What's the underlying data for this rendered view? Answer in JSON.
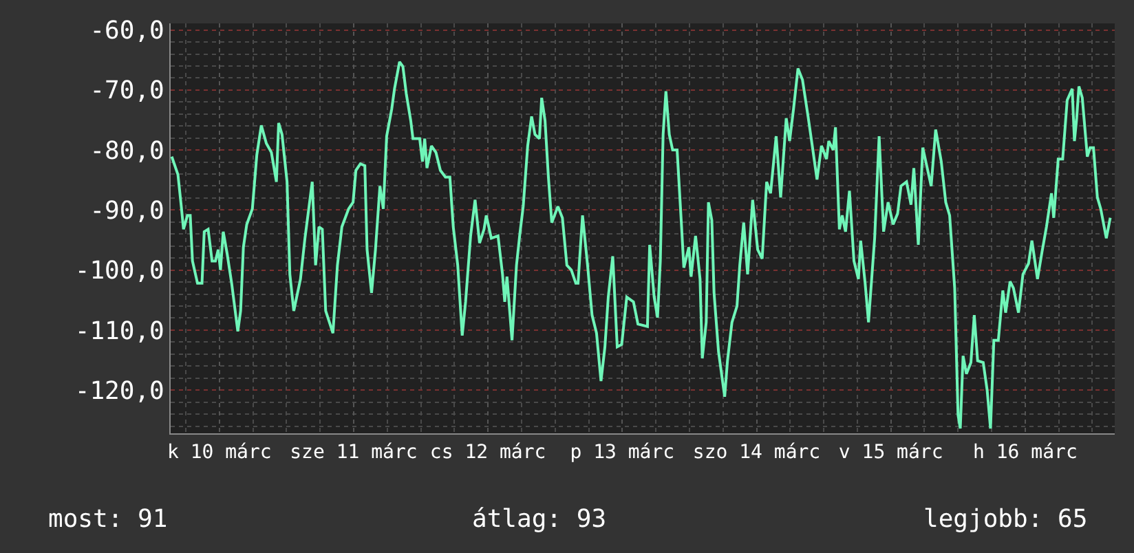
{
  "chart_data": {
    "type": "line",
    "x": [
      "--03-10T03:30",
      "--03-10T04:36",
      "--03-10T05:12",
      "--03-10T05:36",
      "--03-10T06:18",
      "--03-10T06:48",
      "--03-10T07:12",
      "--03-10T08:06",
      "--03-10T08:54",
      "--03-10T09:18",
      "--03-10T10:00",
      "--03-10T10:42",
      "--03-10T11:18",
      "--03-10T11:48",
      "--03-10T12:12",
      "--03-10T12:42",
      "--03-10T13:24",
      "--03-10T14:12",
      "--03-10T15:18",
      "--03-10T15:48",
      "--03-10T16:18",
      "--03-10T16:54",
      "--03-10T17:54",
      "--03-10T18:42",
      "--03-10T19:30",
      "--03-10T20:24",
      "--03-10T21:18",
      "--03-10T22:12",
      "--03-10T22:36",
      "--03-10T23:12",
      "--03-11T00:06",
      "--03-11T00:36",
      "--03-11T01:18",
      "--03-11T02:30",
      "--03-11T03:18",
      "--03-11T04:36",
      "--03-11T05:12",
      "--03-11T05:48",
      "--03-11T06:24",
      "--03-11T07:00",
      "--03-11T08:18",
      "--03-11T09:06",
      "--03-11T09:54",
      "--03-11T11:06",
      "--03-11T11:54",
      "--03-11T12:24",
      "--03-11T13:12",
      "--03-11T14:00",
      "--03-11T14:24",
      "--03-11T15:12",
      "--03-11T15:54",
      "--03-11T16:42",
      "--03-11T17:18",
      "--03-11T17:54",
      "--03-11T18:48",
      "--03-11T19:18",
      "--03-11T20:12",
      "--03-11T20:48",
      "--03-11T21:24",
      "--03-11T22:12",
      "--03-11T22:36",
      "--03-11T23:48",
      "--03-12T00:18",
      "--03-12T00:42",
      "--03-12T01:06",
      "--03-12T01:54",
      "--03-12T02:42",
      "--03-12T03:30",
      "--03-12T04:24",
      "--03-12T05:12",
      "--03-12T05:48",
      "--03-12T06:36",
      "--03-12T07:24",
      "--03-12T08:00",
      "--03-12T08:54",
      "--03-12T09:42",
      "--03-12T10:30",
      "--03-12T11:18",
      "--03-12T11:42",
      "--03-12T12:36",
      "--03-12T13:48",
      "--03-12T14:36",
      "--03-12T15:00",
      "--03-12T15:24",
      "--03-12T16:18",
      "--03-12T17:06",
      "--03-12T17:42",
      "--03-12T18:18",
      "--03-12T19:06",
      "--03-12T19:48",
      "--03-12T20:24",
      "--03-12T21:12",
      "--03-12T21:36",
      "--03-12T22:12",
      "--03-12T22:48",
      "--03-12T23:24",
      "--03-13T00:30",
      "--03-13T01:18",
      "--03-13T02:06",
      "--03-13T02:54",
      "--03-13T03:42",
      "--03-13T04:06",
      "--03-13T04:54",
      "--03-13T05:48",
      "--03-13T06:36",
      "--03-13T07:24",
      "--03-13T08:12",
      "--03-13T08:54",
      "--03-13T09:30",
      "--03-13T10:18",
      "--03-13T11:06",
      "--03-13T11:54",
      "--03-13T12:48",
      "--03-13T14:00",
      "--03-13T14:48",
      "--03-13T16:30",
      "--03-13T16:54",
      "--03-13T17:42",
      "--03-13T18:18",
      "--03-13T18:48",
      "--03-13T19:18",
      "--03-13T19:48",
      "--03-13T20:24",
      "--03-13T21:00",
      "--03-13T21:48",
      "--03-13T22:36",
      "--03-13T23:00",
      "--03-13T23:54",
      "--03-14T00:18",
      "--03-14T01:06",
      "--03-14T01:54",
      "--03-14T02:18",
      "--03-14T03:00",
      "--03-14T03:24",
      "--03-14T04:00",
      "--03-14T04:24",
      "--03-14T05:12",
      "--03-14T06:18",
      "--03-14T06:48",
      "--03-14T07:36",
      "--03-14T08:30",
      "--03-14T09:00",
      "--03-14T09:42",
      "--03-14T10:24",
      "--03-14T11:18",
      "--03-14T12:12",
      "--03-14T13:00",
      "--03-14T13:48",
      "--03-14T14:30",
      "--03-14T15:30",
      "--03-14T16:18",
      "--03-14T17:18",
      "--03-14T17:54",
      "--03-14T18:36",
      "--03-14T19:24",
      "--03-14T20:12",
      "--03-14T21:12",
      "--03-14T22:00",
      "--03-14T22:48",
      "--03-14T23:36",
      "--03-15T00:30",
      "--03-15T00:54",
      "--03-15T01:42",
      "--03-15T02:06",
      "--03-15T02:48",
      "--03-15T03:18",
      "--03-15T03:54",
      "--03-15T04:36",
      "--03-15T05:24",
      "--03-15T06:12",
      "--03-15T06:36",
      "--03-15T07:24",
      "--03-15T08:00",
      "--03-15T09:06",
      "--03-15T09:54",
      "--03-15T10:42",
      "--03-15T11:30",
      "--03-15T12:24",
      "--03-15T13:12",
      "--03-15T13:48",
      "--03-15T14:48",
      "--03-15T15:36",
      "--03-15T16:06",
      "--03-15T16:54",
      "--03-15T17:42",
      "--03-15T18:24",
      "--03-15T19:12",
      "--03-15T20:00",
      "--03-15T21:00",
      "--03-15T21:48",
      "--03-15T22:30",
      "--03-15T23:24",
      "--03-16T00:00",
      "--03-16T00:24",
      "--03-16T00:54",
      "--03-16T01:30",
      "--03-16T02:18",
      "--03-16T02:54",
      "--03-16T03:30",
      "--03-16T04:30",
      "--03-16T05:12",
      "--03-16T05:48",
      "--03-16T06:24",
      "--03-16T07:12",
      "--03-16T08:00",
      "--03-16T08:30",
      "--03-16T09:18",
      "--03-16T09:54",
      "--03-16T10:48",
      "--03-16T11:36",
      "--03-16T12:36",
      "--03-16T13:12",
      "--03-16T14:12",
      "--03-16T15:00",
      "--03-16T15:48",
      "--03-16T16:42",
      "--03-16T17:06",
      "--03-16T17:54",
      "--03-16T18:42",
      "--03-16T19:30",
      "--03-16T20:24",
      "--03-16T20:48",
      "--03-16T21:12",
      "--03-16T21:36",
      "--03-16T22:12",
      "--03-16T23:06",
      "--03-16T23:36",
      "--03-17T00:12",
      "--03-17T00:54",
      "--03-17T01:30",
      "--03-17T02:30",
      "--03-17T03:12"
    ],
    "series": [
      {
        "color": "#6ff5b8",
        "values": [
          -81.1,
          -84.1,
          -89.4,
          -93.2,
          -90.9,
          -90.9,
          -98.5,
          -102.2,
          -102.2,
          -93.6,
          -93.2,
          -98.5,
          -98.5,
          -96.6,
          -100.0,
          -93.6,
          -97.3,
          -102.2,
          -110.2,
          -106.8,
          -96.2,
          -92.4,
          -89.8,
          -80.8,
          -75.9,
          -78.9,
          -80.4,
          -85.3,
          -75.5,
          -77.4,
          -85.3,
          -100.7,
          -106.8,
          -101.5,
          -94.7,
          -85.3,
          -99.2,
          -92.8,
          -93.2,
          -106.8,
          -110.5,
          -99.2,
          -92.8,
          -89.8,
          -88.7,
          -83.4,
          -82.3,
          -82.6,
          -96.6,
          -103.8,
          -96.6,
          -86.0,
          -89.8,
          -77.7,
          -73.2,
          -69.8,
          -65.3,
          -66.1,
          -70.6,
          -75.1,
          -78.1,
          -78.1,
          -81.9,
          -78.1,
          -83.0,
          -79.3,
          -80.4,
          -83.4,
          -84.5,
          -84.5,
          -92.8,
          -99.2,
          -110.9,
          -105.3,
          -94.3,
          -88.3,
          -95.5,
          -93.2,
          -90.9,
          -94.7,
          -94.3,
          -100.7,
          -105.3,
          -101.1,
          -111.7,
          -99.2,
          -94.0,
          -89.4,
          -79.3,
          -74.4,
          -77.4,
          -78.1,
          -71.3,
          -75.1,
          -84.5,
          -92.1,
          -89.4,
          -91.3,
          -99.2,
          -100.0,
          -102.2,
          -102.2,
          -90.9,
          -99.2,
          -107.5,
          -110.5,
          -118.5,
          -112.8,
          -104.5,
          -97.7,
          -112.8,
          -112.4,
          -104.5,
          -105.3,
          -109.0,
          -109.4,
          -95.8,
          -104.5,
          -107.9,
          -98.5,
          -77.4,
          -70.2,
          -77.4,
          -80.0,
          -80.0,
          -92.8,
          -99.6,
          -96.2,
          -101.1,
          -94.3,
          -101.5,
          -114.7,
          -108.7,
          -88.7,
          -91.7,
          -103.8,
          -113.6,
          -121.1,
          -115.1,
          -108.7,
          -106.0,
          -99.2,
          -92.1,
          -100.7,
          -88.3,
          -96.6,
          -98.1,
          -85.3,
          -87.2,
          -77.7,
          -87.9,
          -74.7,
          -78.5,
          -73.2,
          -66.4,
          -68.3,
          -74.4,
          -79.6,
          -84.9,
          -79.3,
          -81.5,
          -78.5,
          -80.0,
          -76.2,
          -93.2,
          -90.9,
          -93.6,
          -86.8,
          -98.5,
          -101.5,
          -95.1,
          -102.2,
          -108.7,
          -94.7,
          -77.7,
          -93.6,
          -88.7,
          -92.4,
          -90.6,
          -86.0,
          -85.3,
          -89.1,
          -83.0,
          -95.8,
          -79.6,
          -82.6,
          -86.0,
          -76.6,
          -81.9,
          -88.7,
          -90.9,
          -103.0,
          -124.1,
          -126.4,
          -114.3,
          -117.3,
          -115.4,
          -107.5,
          -115.1,
          -115.4,
          -120.0,
          -126.4,
          -111.7,
          -111.7,
          -103.4,
          -107.1,
          -101.9,
          -103.0,
          -107.1,
          -100.7,
          -98.9,
          -95.1,
          -101.5,
          -97.0,
          -92.8,
          -87.2,
          -91.3,
          -81.5,
          -81.5,
          -71.7,
          -69.8,
          -78.5,
          -74.7,
          -69.4,
          -71.3,
          -81.1,
          -79.6,
          -79.6,
          -87.9,
          -89.8,
          -94.7,
          -91.3
        ]
      }
    ],
    "xlim": [
      "--03-10T03:18",
      "--03-17T04:00"
    ],
    "xticks": [
      {
        "value": "--03-10T12:00",
        "label": "k 10 márc"
      },
      {
        "value": "--03-11T12:00",
        "label": "sze 11 márc"
      },
      {
        "value": "--03-12T12:00",
        "label": "cs 12 márc"
      },
      {
        "value": "--03-13T12:00",
        "label": "p 13 márc"
      },
      {
        "value": "--03-14T12:00",
        "label": "szo 14 márc"
      },
      {
        "value": "--03-15T12:00",
        "label": "v 15 márc"
      },
      {
        "value": "--03-16T12:00",
        "label": "h 16 márc"
      }
    ],
    "ylim": [
      -127.2,
      -58.9
    ],
    "yticks": [
      {
        "value": -60,
        "label": "-60,0"
      },
      {
        "value": -70,
        "label": "-70,0"
      },
      {
        "value": -80,
        "label": "-80,0"
      },
      {
        "value": -90,
        "label": "-90,0"
      },
      {
        "value": -100,
        "label": "-100,0"
      },
      {
        "value": -110,
        "label": "-110,0"
      },
      {
        "value": -120,
        "label": "-120,0"
      }
    ],
    "grid": true,
    "legend": false,
    "annotations": [
      "most: 91",
      "átlag: 93",
      "legjobb: 65"
    ]
  }
}
